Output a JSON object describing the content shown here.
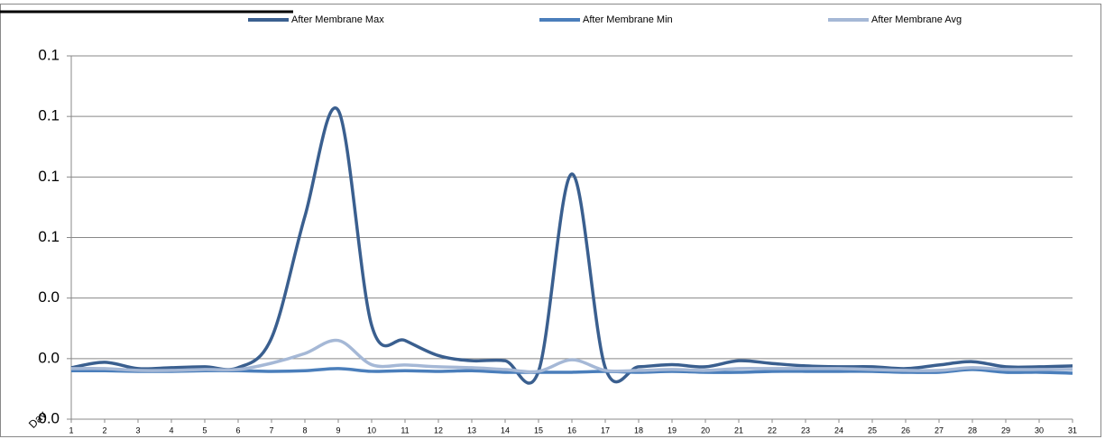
{
  "chart_data": {
    "type": "line",
    "x_label": "Day",
    "categories": [
      "1",
      "2",
      "3",
      "4",
      "5",
      "6",
      "7",
      "8",
      "9",
      "10",
      "11",
      "12",
      "13",
      "14",
      "15",
      "16",
      "17",
      "18",
      "19",
      "20",
      "21",
      "22",
      "23",
      "24",
      "25",
      "26",
      "27",
      "28",
      "29",
      "30",
      "31"
    ],
    "series": [
      {
        "name": "After Membrane Max",
        "color": "#3a5f8f",
        "values": [
          0.017,
          0.0188,
          0.0167,
          0.017,
          0.0173,
          0.017,
          0.0268,
          0.067,
          0.102,
          0.031,
          0.026,
          0.021,
          0.0193,
          0.0193,
          0.0158,
          0.081,
          0.017,
          0.0173,
          0.018,
          0.0173,
          0.0193,
          0.0184,
          0.0176,
          0.0173,
          0.0173,
          0.0167,
          0.0179,
          0.019,
          0.0173,
          0.0173,
          0.0176
        ]
      },
      {
        "name": "After Membrane Min",
        "color": "#4a7ebb",
        "values": [
          0.016,
          0.016,
          0.0158,
          0.0158,
          0.016,
          0.016,
          0.0158,
          0.016,
          0.0167,
          0.0158,
          0.016,
          0.0158,
          0.016,
          0.0155,
          0.0155,
          0.0155,
          0.0158,
          0.0155,
          0.0158,
          0.0155,
          0.0155,
          0.0158,
          0.0158,
          0.0158,
          0.0158,
          0.0155,
          0.0155,
          0.0164,
          0.0155,
          0.0155,
          0.0152
        ]
      },
      {
        "name": "After Membrane Avg",
        "color": "#a5b8d6",
        "values": [
          0.0167,
          0.0167,
          0.0161,
          0.0161,
          0.0164,
          0.0164,
          0.0185,
          0.0217,
          0.026,
          0.018,
          0.0179,
          0.0173,
          0.017,
          0.0164,
          0.0158,
          0.0196,
          0.0161,
          0.0161,
          0.0164,
          0.0161,
          0.0167,
          0.0167,
          0.0167,
          0.0167,
          0.0164,
          0.0161,
          0.0161,
          0.017,
          0.0164,
          0.0164,
          0.0164
        ]
      }
    ],
    "ylim": [
      0,
      0.12
    ],
    "yticks": [
      {
        "value": 0,
        "label": "0.0"
      },
      {
        "value": 0.02,
        "label": "0.0"
      },
      {
        "value": 0.04,
        "label": "0.0"
      },
      {
        "value": 0.06,
        "label": "0.1"
      },
      {
        "value": 0.08,
        "label": "0.1"
      },
      {
        "value": 0.1,
        "label": "0.1"
      },
      {
        "value": 0.12,
        "label": "0.1"
      }
    ],
    "grid": true
  }
}
